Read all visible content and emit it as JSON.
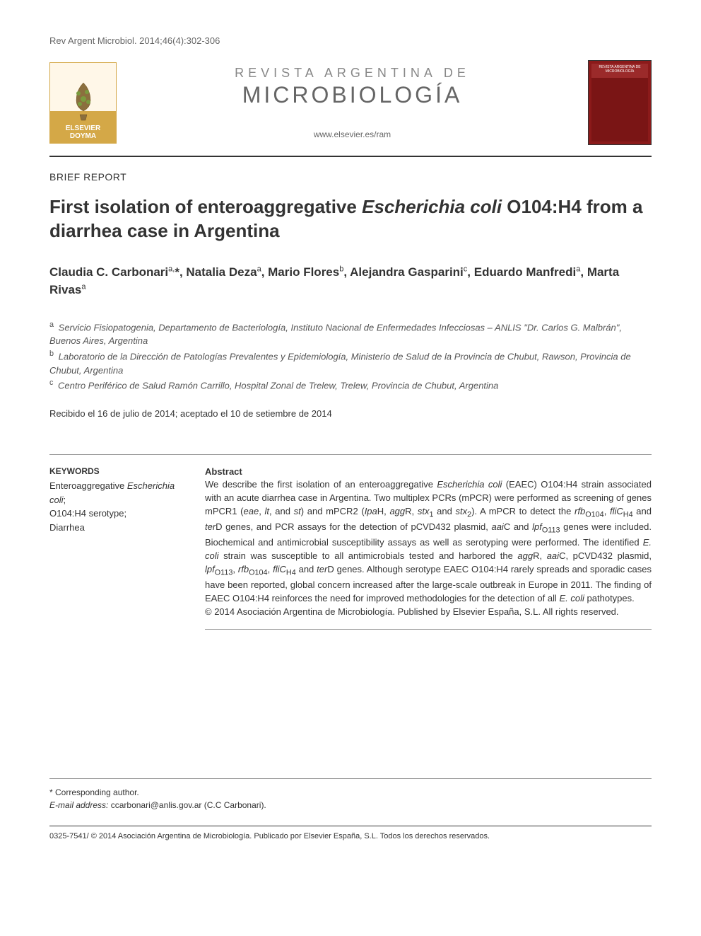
{
  "header": {
    "citation": "Rev Argent Microbiol. 2014;46(4):302-306",
    "pretitle": "REVISTA ARGENTINA DE",
    "title": "MICROBIOLOGÍA",
    "url": "www.elsevier.es/ram",
    "logo_text": "ELSEVIER DOYMA",
    "cover_text": "REVISTA ARGENTINA DE MICROBIOLOGÍA"
  },
  "article": {
    "section_label": "BRIEF REPORT",
    "title_html": "First isolation of enteroaggregative <i>Escherichia coli</i> O104:H4 from a diarrhea case in Argentina",
    "authors_html": "Claudia C. Carbonari<sup>a,</sup>*, Natalia Deza<sup>a</sup>, Mario Flores<sup>b</sup>, Alejandra Gasparini<sup>c</sup>, Eduardo Manfredi<sup>a</sup>, Marta Rivas<sup>a</sup>",
    "affiliations": [
      {
        "sup": "a",
        "text": "Servicio Fisiopatogenia, Departamento de Bacteriología, Instituto Nacional de Enfermedades Infecciosas – ANLIS \"Dr. Carlos G. Malbrán\", Buenos Aires, Argentina"
      },
      {
        "sup": "b",
        "text": "Laboratorio de la Dirección de Patologías Prevalentes y Epidemiología, Ministerio de Salud de la Provincia de Chubut, Rawson, Provincia de Chubut, Argentina"
      },
      {
        "sup": "c",
        "text": "Centro Periférico de Salud Ramón Carrillo, Hospital Zonal de Trelew, Trelew, Provincia de Chubut, Argentina"
      }
    ],
    "dates": "Recibido el 16 de julio de 2014; aceptado el 10 de setiembre de 2014"
  },
  "keywords": {
    "heading": "KEYWORDS",
    "body_html": "Enteroaggregative <i>Escherichia coli</i>;<br>O104:H4 serotype;<br>Diarrhea"
  },
  "abstract": {
    "heading": "Abstract",
    "body_html": "We describe the first isolation of an enteroaggregative <i>Escherichia coli</i> (EAEC) O104:H4 strain associated with an acute diarrhea case in Argentina. Two multiplex PCRs (mPCR) were performed as screening of genes mPCR1 (<i>eae</i>, <i>lt</i>, and <i>st</i>) and mPCR2 (<i>Ipa</i>H, <i>agg</i>R, <i>stx</i><sub>1</sub> and <i>stx</i><sub>2</sub>). A mPCR to detect the <i>rfb</i><sub>O104</sub>, <i>fliC</i><sub>H4</sub> and <i>ter</i>D genes, and PCR assays for the detection of pCVD432 plasmid, <i>aai</i>C and <i>lpf</i><sub>O113</sub> genes were included. Biochemical and antimicrobial susceptibility assays as well as serotyping were performed. The identified <i>E. coli</i> strain was susceptible to all antimicrobials tested and harbored the <i>agg</i>R, <i>aai</i>C, pCVD432 plasmid, <i>lpf</i><sub>O113</sub>, <i>rfb</i><sub>O104</sub>, <i>fliC</i><sub>H4</sub> and <i>ter</i>D genes. Although serotype EAEC O104:H4 rarely spreads and sporadic cases have been reported, global concern increased after the large-scale outbreak in Europe in 2011. The finding of EAEC O104:H4 reinforces the need for improved methodologies for the detection of all <i>E. coli</i> pathotypes.<br>© 2014 Asociación Argentina de Microbiología. Published by Elsevier España, S.L. All rights reserved."
  },
  "footer": {
    "corresponding_label": "* Corresponding author.",
    "email_label": "E-mail address:",
    "email": "ccarbonari@anlis.gov.ar",
    "email_name": "(C.C Carbonari).",
    "copyright": "0325-7541/ © 2014 Asociación Argentina de Microbiología. Publicado por Elsevier España, S.L. Todos los derechos reservados."
  },
  "colors": {
    "text": "#333333",
    "muted": "#666666",
    "rule": "#999999",
    "logo_gold": "#d4a847",
    "cover_red": "#8b1a1a"
  },
  "typography": {
    "body_family": "Arial, Helvetica, sans-serif",
    "title_fontsize": 26,
    "author_fontsize": 17,
    "abstract_fontsize": 13
  }
}
